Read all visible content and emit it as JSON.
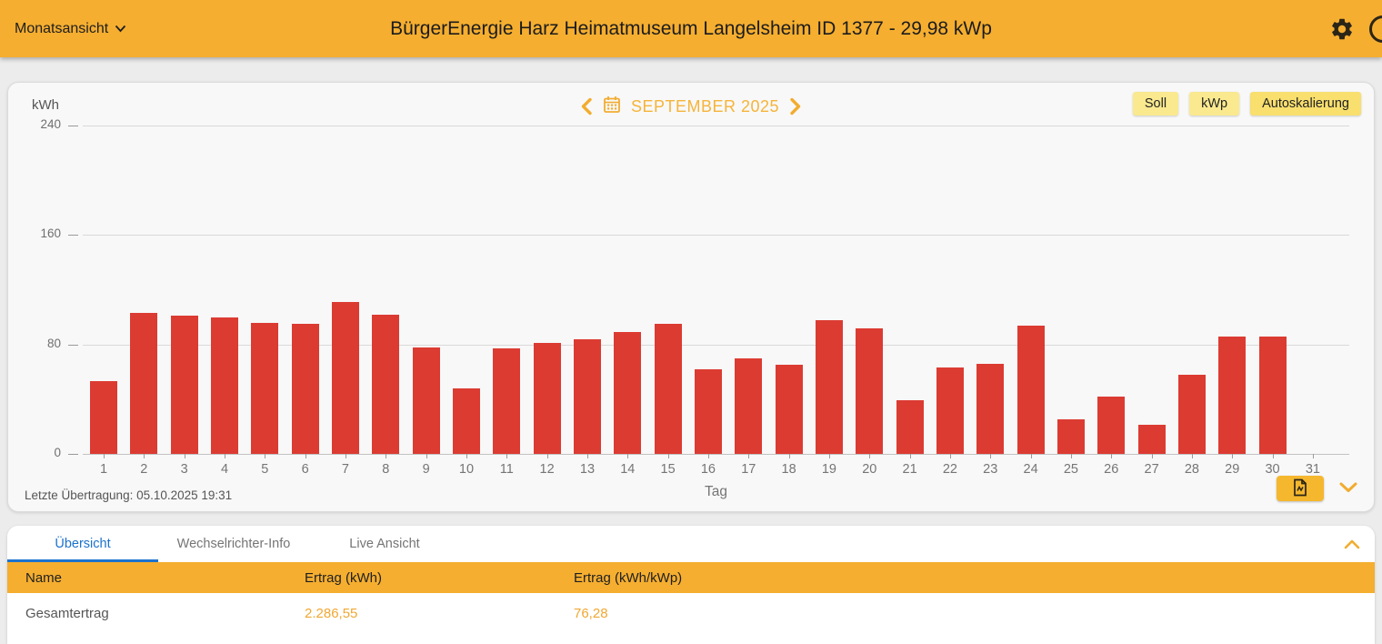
{
  "header": {
    "view_selector": "Monatsansicht",
    "title": "BürgerEnergie Harz Heimatmuseum Langelsheim ID 1377 - 29,98 kWp"
  },
  "chart": {
    "unit_label": "kWh",
    "month_label": "SEPTEMBER 2025",
    "buttons": {
      "soll": "Soll",
      "kwp": "kWp",
      "autoscale": "Autoskalierung"
    },
    "xlabel": "Tag",
    "last_transmission": "Letzte Übertragung: 05.10.2025 19:31"
  },
  "chart_data": {
    "type": "bar",
    "title": "SEPTEMBER 2025",
    "xlabel": "Tag",
    "ylabel": "kWh",
    "ylim": [
      0,
      240
    ],
    "yticks": [
      0,
      80,
      160,
      240
    ],
    "grid": true,
    "bar_color": "#DC3B32",
    "categories": [
      1,
      2,
      3,
      4,
      5,
      6,
      7,
      8,
      9,
      10,
      11,
      12,
      13,
      14,
      15,
      16,
      17,
      18,
      19,
      20,
      21,
      22,
      23,
      24,
      25,
      26,
      27,
      28,
      29,
      30,
      31
    ],
    "values": [
      53,
      103,
      101,
      100,
      96,
      95,
      111,
      102,
      78,
      48,
      77,
      81,
      84,
      89,
      95,
      62,
      70,
      65,
      98,
      92,
      39,
      63,
      66,
      94,
      25,
      42,
      21,
      58,
      86,
      86,
      0
    ]
  },
  "tabs": [
    {
      "label": "Übersicht",
      "active": true
    },
    {
      "label": "Wechselrichter-Info",
      "active": false
    },
    {
      "label": "Live Ansicht",
      "active": false
    }
  ],
  "table": {
    "headers": [
      "Name",
      "Ertrag (kWh)",
      "Ertrag (kWh/kWp)"
    ],
    "rows": [
      {
        "name": "Gesamtertrag",
        "ertrag_kwh": "2.286,55",
        "ertrag_kwh_kwp": "76,28"
      }
    ]
  },
  "colors": {
    "header_bg": "#F5AE30",
    "bar_red": "#DC3B32",
    "month_amber": "#F5B43A",
    "button_light_yellow": "#FAE98F",
    "button_autoscale_yellow": "#F8DF6E",
    "tab_active_blue": "#1B72CE",
    "table_header_bg": "#F5AE30",
    "value_amber": "#F1A733"
  }
}
